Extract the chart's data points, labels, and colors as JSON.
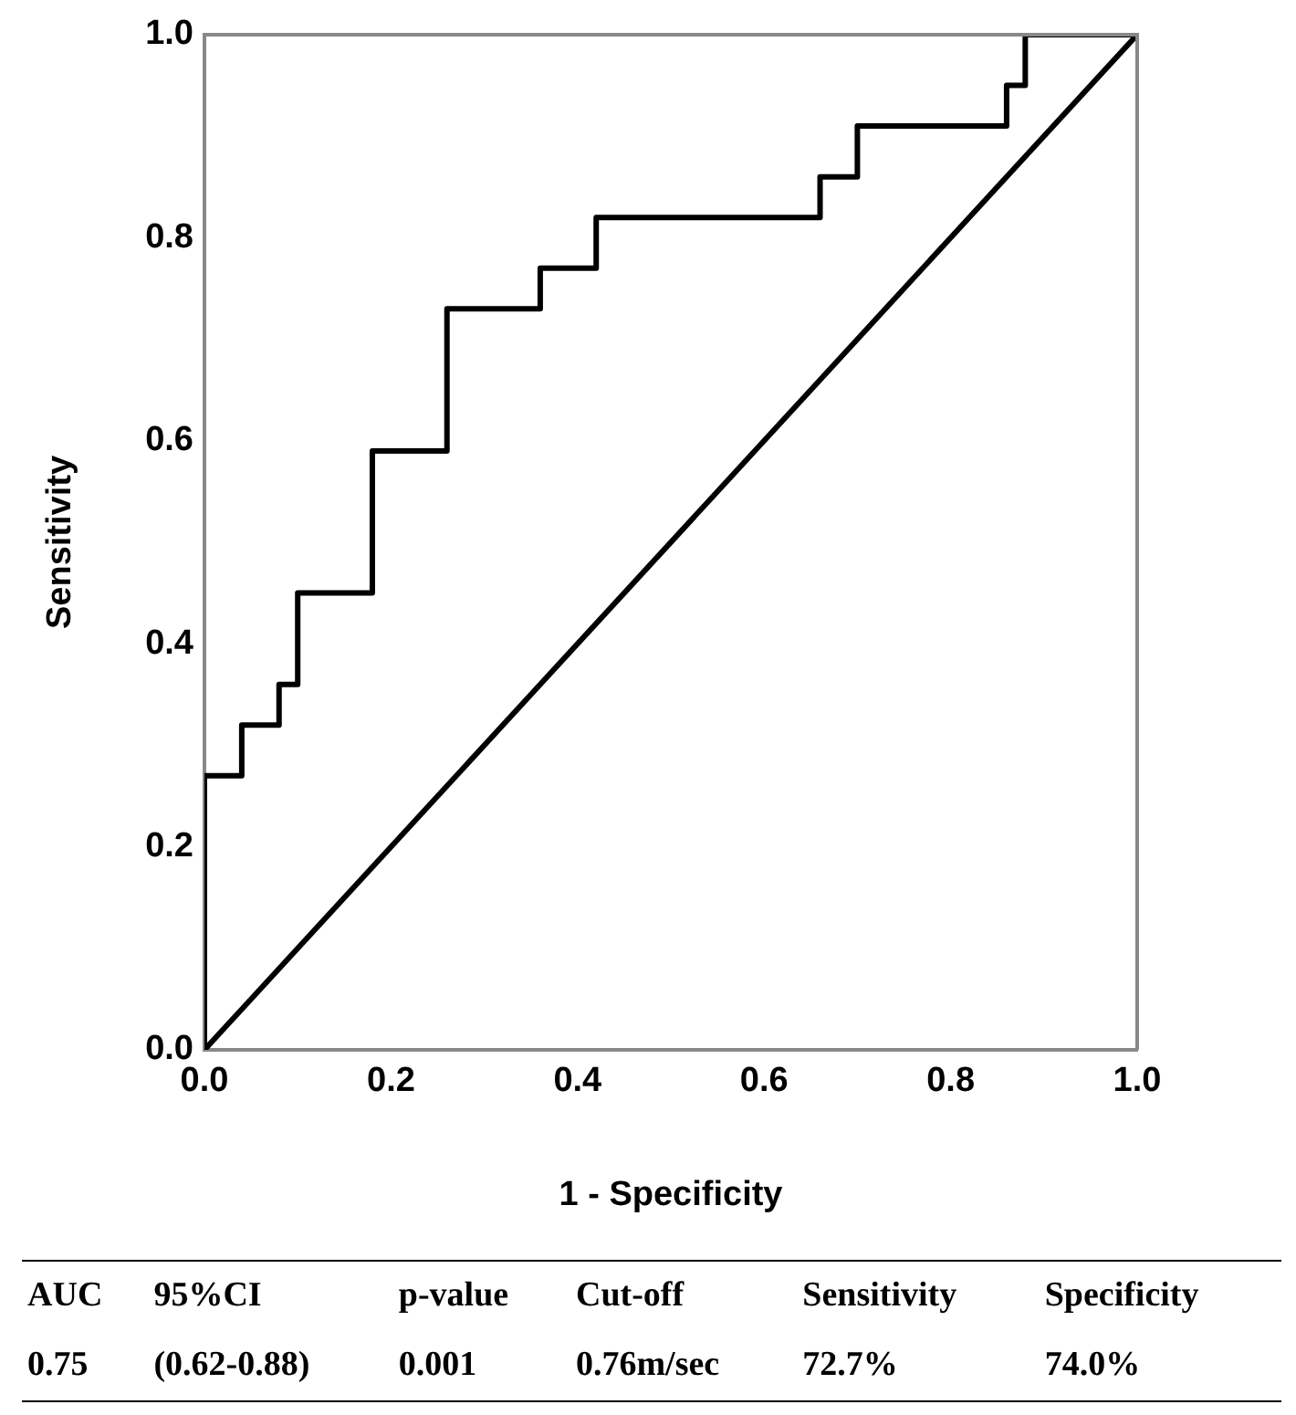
{
  "chart_data": {
    "type": "step",
    "xlabel": "1 - Specificity",
    "ylabel": "Sensitivity",
    "series": [
      {
        "color": "#000000",
        "x": [
          0,
          0,
          0.04,
          0.08,
          0.1,
          0.18,
          0.26,
          0.36,
          0.42,
          0.66,
          0.7,
          0.86,
          0.88,
          1.0
        ],
        "values": [
          0,
          0.27,
          0.32,
          0.36,
          0.45,
          0.59,
          0.73,
          0.77,
          0.82,
          0.86,
          0.91,
          0.95,
          1.0,
          1.0
        ]
      },
      {
        "type": "line",
        "color": "#000000",
        "x": [
          0,
          1
        ],
        "values": [
          0,
          1
        ]
      }
    ],
    "xlim": [
      0,
      1
    ],
    "ylim": [
      0,
      1
    ],
    "xticks": [
      {
        "value": 0,
        "label": "0.0"
      },
      {
        "value": 0.2,
        "label": "0.2"
      },
      {
        "value": 0.4,
        "label": "0.4"
      },
      {
        "value": 0.6,
        "label": "0.6"
      },
      {
        "value": 0.8,
        "label": "0.8"
      },
      {
        "value": 1,
        "label": "1.0"
      }
    ],
    "yticks": [
      {
        "value": 0,
        "label": "0.0"
      },
      {
        "value": 0.2,
        "label": "0.2"
      },
      {
        "value": 0.4,
        "label": "0.4"
      },
      {
        "value": 0.6,
        "label": "0.6"
      },
      {
        "value": 0.8,
        "label": "0.8"
      },
      {
        "value": 1,
        "label": "1.0"
      }
    ],
    "grid": false,
    "legend": false,
    "marker": "none",
    "line_style": "solid",
    "annotations": [
      "AUC",
      "95%CI",
      "p-value",
      "Cut-off",
      "Sensitivity",
      "Specificity",
      "0.75",
      "(0.62-0.88)",
      "0.001",
      "0.76m/sec",
      "72.7%",
      "74.0%"
    ]
  }
}
